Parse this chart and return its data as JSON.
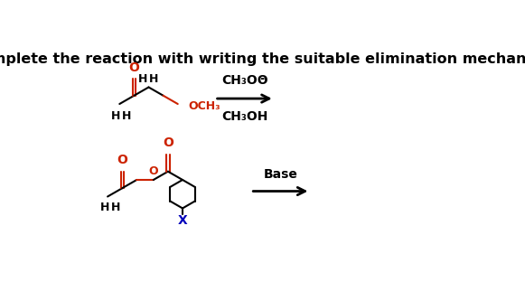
{
  "title": "Complete the reaction with writing the suitable elimination mechanism",
  "title_fontsize": 11.5,
  "title_fontweight": "bold",
  "background_color": "#ffffff",
  "black": "#000000",
  "red": "#cc2200",
  "blue": "#0000bb",
  "r1_reagent_above": "CH₃OΘ",
  "r1_reagent_below": "CH₃OH",
  "r2_label": "Base"
}
